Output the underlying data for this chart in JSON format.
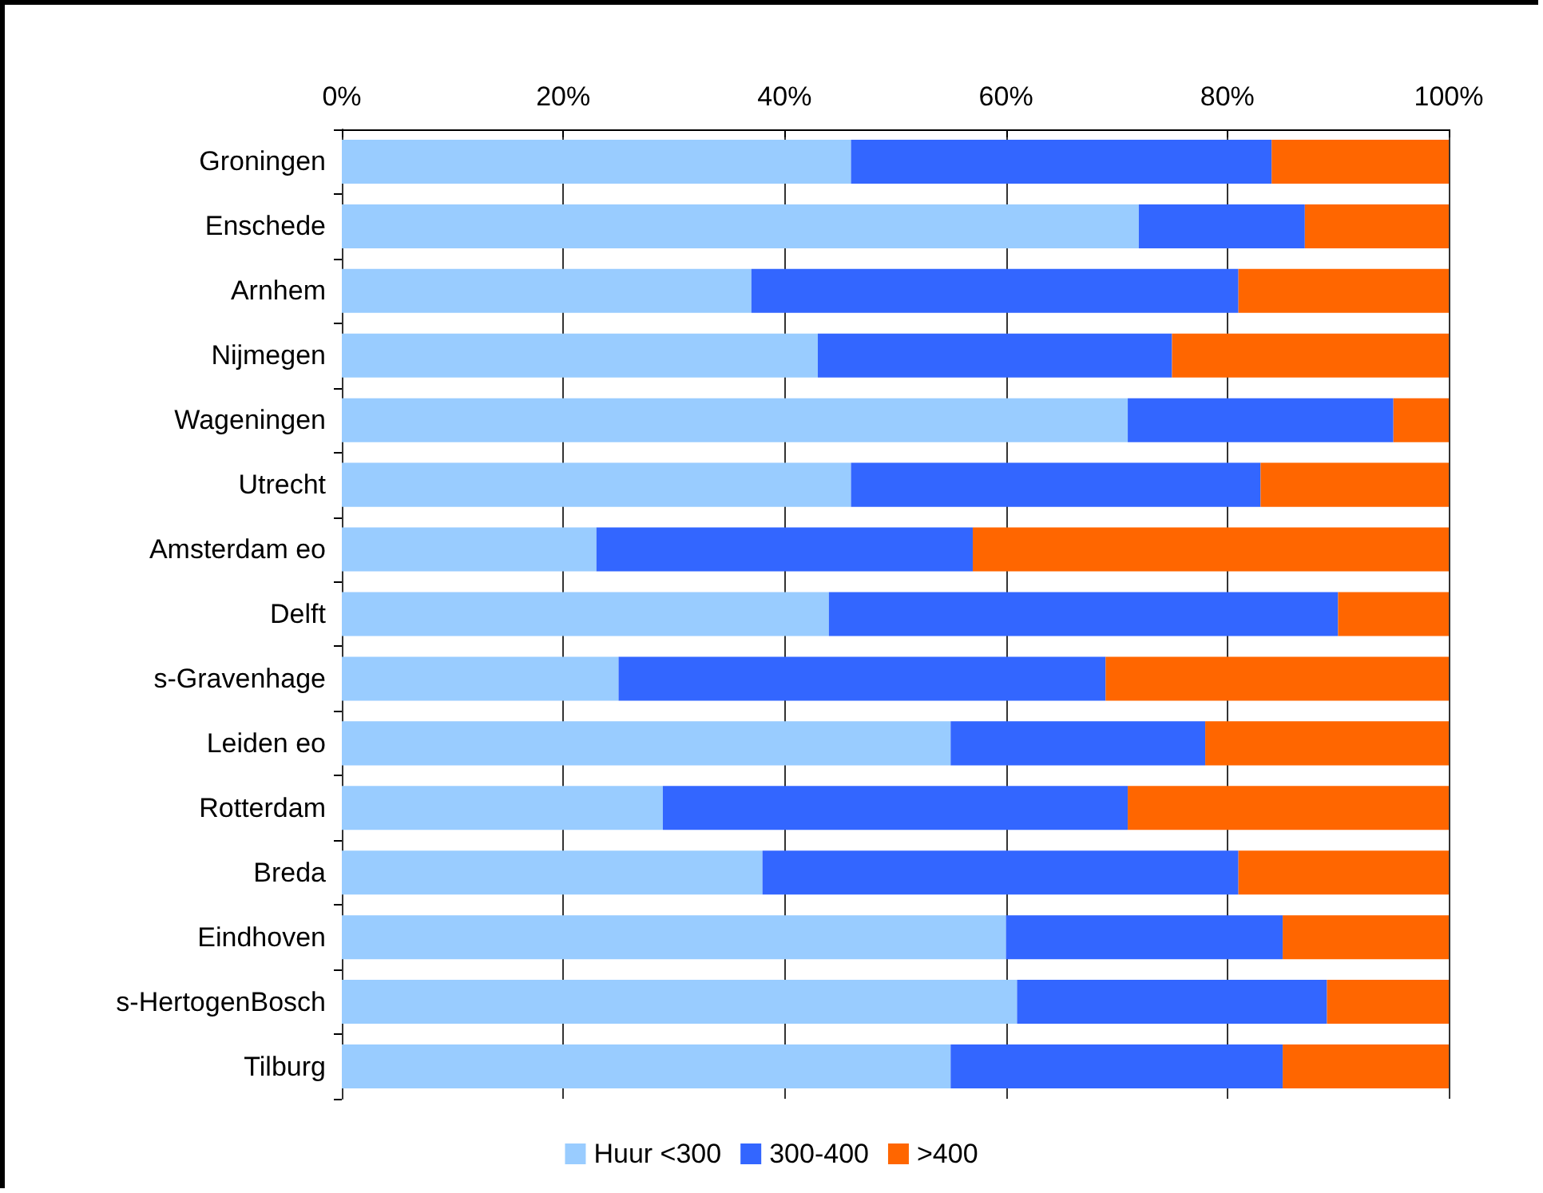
{
  "chart_data": {
    "type": "bar",
    "orientation": "horizontal",
    "stacked": true,
    "categories": [
      "Groningen",
      "Enschede",
      "Arnhem",
      "Nijmegen",
      "Wageningen",
      "Utrecht",
      "Amsterdam eo",
      "Delft",
      "s-Gravenhage",
      "Leiden eo",
      "Rotterdam",
      "Breda",
      "Eindhoven",
      "s-HertogenBosch",
      "Tilburg"
    ],
    "series": [
      {
        "name": "Huur <300",
        "color": "#99ccff",
        "values": [
          46,
          72,
          37,
          43,
          71,
          46,
          23,
          44,
          25,
          55,
          29,
          38,
          60,
          61,
          55
        ]
      },
      {
        "name": "300-400",
        "color": "#3366ff",
        "values": [
          38,
          15,
          44,
          32,
          24,
          37,
          34,
          46,
          44,
          23,
          42,
          43,
          25,
          28,
          30
        ]
      },
      {
        "name": ">400",
        "color": "#ff6600",
        "values": [
          16,
          13,
          19,
          25,
          5,
          17,
          43,
          10,
          31,
          22,
          29,
          19,
          15,
          11,
          15
        ]
      }
    ],
    "xlim": [
      0,
      100
    ],
    "xticks": [
      {
        "value": 0,
        "label": "0%"
      },
      {
        "value": 20,
        "label": "20%"
      },
      {
        "value": 40,
        "label": "40%"
      },
      {
        "value": 60,
        "label": "60%"
      },
      {
        "value": 80,
        "label": "80%"
      },
      {
        "value": 100,
        "label": "100%"
      }
    ],
    "grid": "x",
    "legend": "bottom"
  }
}
